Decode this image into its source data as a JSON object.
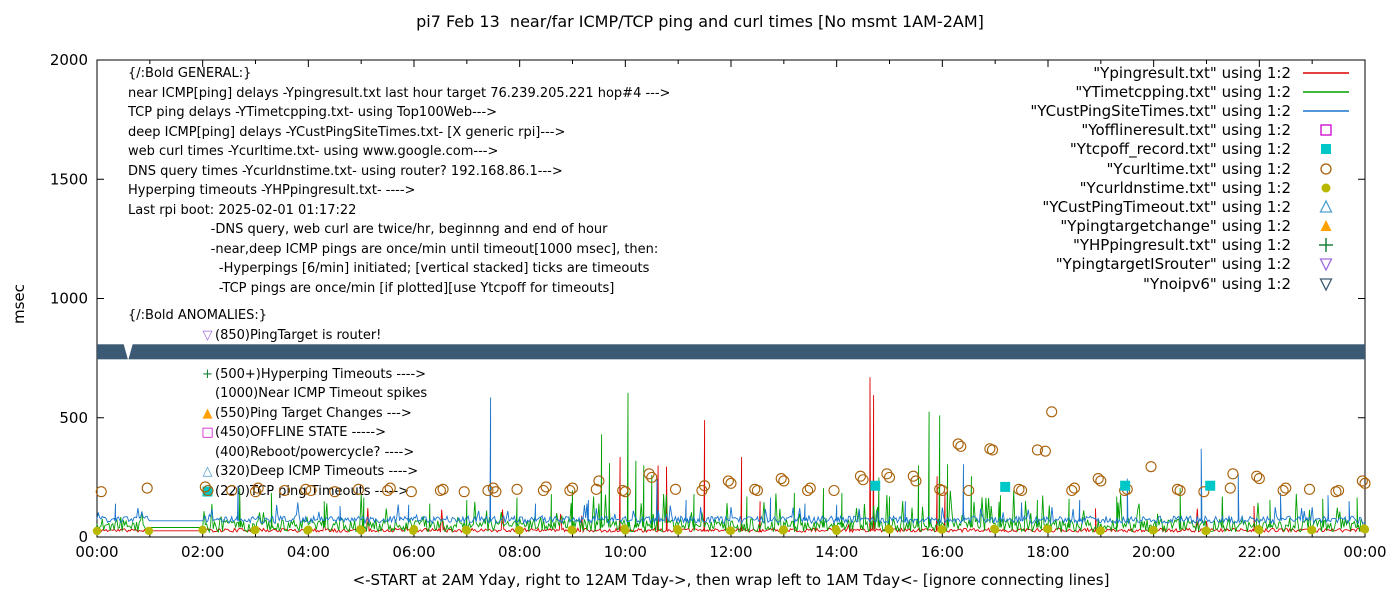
{
  "chart_data": {
    "type": "line",
    "title": "pi7 Feb 13  near/far ICMP/TCP ping and curl times [No msmt 1AM-2AM]",
    "xlabel": "<-START at 2AM Yday, right to 12AM Tday->, then wrap left to 1AM Tday<- [ignore connecting lines]",
    "ylabel": "msec",
    "ylim": [
      0,
      2000
    ],
    "y_ticks": [
      0,
      500,
      1000,
      1500,
      2000
    ],
    "x_range_hours": [
      0,
      24
    ],
    "grid": false,
    "legend_position": "top-right",
    "x_ticks": [
      {
        "hour": 0,
        "label": "00:00"
      },
      {
        "hour": 2,
        "label": "02:00"
      },
      {
        "hour": 4,
        "label": "04:00"
      },
      {
        "hour": 6,
        "label": "06:00"
      },
      {
        "hour": 8,
        "label": "08:00"
      },
      {
        "hour": 10,
        "label": "10:00"
      },
      {
        "hour": 12,
        "label": "12:00"
      },
      {
        "hour": 14,
        "label": "14:00"
      },
      {
        "hour": 16,
        "label": "16:00"
      },
      {
        "hour": 18,
        "label": "18:00"
      },
      {
        "hour": 20,
        "label": "20:00"
      },
      {
        "hour": 22,
        "label": "22:00"
      },
      {
        "hour": 24,
        "label": "00:00"
      }
    ],
    "legend": [
      {
        "label": "\"Ypingresult.txt\" using 1:2",
        "sample": "line",
        "color": "#dc0000"
      },
      {
        "label": "\"YTimetcpping.txt\" using 1:2",
        "sample": "line",
        "color": "#00a000"
      },
      {
        "label": "\"YCustPingSiteTimes.txt\" using 1:2",
        "sample": "line",
        "color": "#1874cd"
      },
      {
        "label": "\"Yofflineresult.txt\" using 1:2",
        "sample": "square-open",
        "color": "#cc00cc"
      },
      {
        "label": "\"Ytcpoff_record.txt\" using 1:2",
        "sample": "square-fill",
        "color": "#00c8c8"
      },
      {
        "label": "\"Ycurltime.txt\" using 1:2",
        "sample": "circle-open",
        "color": "#a86008"
      },
      {
        "label": "\"Ycurldnstime.txt\" using 1:2",
        "sample": "circle-fill",
        "color": "#b8b800"
      },
      {
        "label": "\"YCustPingTimeout.txt\" using 1:2",
        "sample": "tri-up-open",
        "color": "#4f9fd0"
      },
      {
        "label": "\"Ypingtargetchange\" using 1:2",
        "sample": "tri-up-fill",
        "color": "#ffa000"
      },
      {
        "label": "\"YHPpingresult.txt\" using 1:2",
        "sample": "plus",
        "color": "#188038"
      },
      {
        "label": "\"YpingtargetISrouter\" using 1:2",
        "sample": "tri-down-open",
        "color": "#9e6ade"
      },
      {
        "label": "\"Ynoipv6\" using 1:2",
        "sample": "tri-down-open",
        "color": "#3c5a74"
      }
    ],
    "annotations": {
      "general": [
        "{/:Bold GENERAL:}",
        "near ICMP[ping] delays -Ypingresult.txt last hour target 76.239.205.221 hop#4 --->",
        "TCP ping delays -YTimetcpping.txt- using Top100Web--->",
        "deep ICMP[ping] delays -YCustPingSiteTimes.txt- [X generic rpi]--->",
        "web curl times -Ycurltime.txt- using www.google.com--->",
        "DNS query times -Ycurldnstime.txt- using router? 192.168.86.1--->",
        "Hyperping timeouts -YHPpingresult.txt- ---->",
        "Last rpi boot: 2025-02-01 01:17:22",
        "                    -DNS query, web curl are twice/hr, beginnng and end of hour",
        "                    -near,deep ICMP pings are once/min until timeout[1000 msec], then:",
        "                      -Hyperpings [6/min] initiated; [vertical stacked] ticks are timeouts",
        "                      -TCP pings are once/min [if plotted][use Ytcpoff for timeouts]"
      ],
      "anomalies": [
        {
          "header": true,
          "glyph": "",
          "marker": "",
          "color": "#000000",
          "text": "{/:Bold ANOMALIES:}"
        },
        {
          "header": false,
          "glyph": "▽",
          "marker": "tri-down-open",
          "color": "#9e6ade",
          "text": "(850)PingTarget is router!"
        },
        {
          "header": false,
          "glyph": "",
          "marker": "blank",
          "color": "#000000",
          "text": ""
        },
        {
          "header": false,
          "glyph": "+",
          "marker": "plus",
          "color": "#188038",
          "text": "(500+)Hyperping Timeouts ---->"
        },
        {
          "header": false,
          "glyph": "",
          "marker": "blank",
          "color": "#000000",
          "text": "(1000)Near ICMP Timeout spikes"
        },
        {
          "header": false,
          "glyph": "▲",
          "marker": "tri-up-fill",
          "color": "#ffa000",
          "text": "(550)Ping Target Changes --->"
        },
        {
          "header": false,
          "glyph": "□",
          "marker": "square-open",
          "color": "#cc00cc",
          "text": "(450)OFFLINE STATE ----->"
        },
        {
          "header": false,
          "glyph": "",
          "marker": "blank",
          "color": "#000000",
          "text": "(400)Reboot/powercycle? ---->"
        },
        {
          "header": false,
          "glyph": "△",
          "marker": "tri-up-open",
          "color": "#4f9fd0",
          "text": "(320)Deep ICMP Timeouts ---->"
        },
        {
          "header": false,
          "glyph": "■",
          "marker": "square-fill",
          "color": "#00c8c8",
          "text": "(220)TCP ping Timeouts ----->"
        }
      ]
    },
    "series": [
      {
        "name": "Ypingresult",
        "color": "#dc0000",
        "type": "line",
        "seed": 11,
        "base": 26,
        "jitter": 16,
        "burst_prob": 0.015,
        "burst_max": 110,
        "spikes": [
          [
            9.9,
            335
          ],
          [
            10.62,
            300
          ],
          [
            10.78,
            295
          ],
          [
            11.5,
            490
          ],
          [
            12.2,
            335
          ],
          [
            12.55,
            150
          ],
          [
            14.63,
            670
          ],
          [
            14.7,
            595
          ],
          [
            15.9,
            255
          ],
          [
            16.05,
            190
          ],
          [
            18.9,
            120
          ],
          [
            21.9,
            130
          ]
        ]
      },
      {
        "name": "YTimetcpping",
        "color": "#00a000",
        "type": "line",
        "seed": 22,
        "base": 40,
        "jitter": 55,
        "burst_prob": 0.1,
        "burst_max": 130,
        "spikes": [
          [
            2.7,
            205
          ],
          [
            3.3,
            185
          ],
          [
            4.3,
            150
          ],
          [
            5.05,
            165
          ],
          [
            6.3,
            140
          ],
          [
            7.0,
            155
          ],
          [
            7.95,
            165
          ],
          [
            8.6,
            180
          ],
          [
            9.0,
            195
          ],
          [
            9.55,
            430
          ],
          [
            9.7,
            310
          ],
          [
            10.05,
            605
          ],
          [
            10.2,
            320
          ],
          [
            10.35,
            300
          ],
          [
            10.5,
            260
          ],
          [
            11.3,
            180
          ],
          [
            12.3,
            170
          ],
          [
            13.2,
            185
          ],
          [
            13.75,
            205
          ],
          [
            14.1,
            185
          ],
          [
            14.8,
            250
          ],
          [
            15.0,
            170
          ],
          [
            15.55,
            300
          ],
          [
            15.75,
            525
          ],
          [
            15.95,
            510
          ],
          [
            16.1,
            305
          ],
          [
            16.55,
            255
          ],
          [
            17.1,
            175
          ],
          [
            17.8,
            155
          ],
          [
            18.4,
            160
          ],
          [
            19.3,
            170
          ],
          [
            20.5,
            205
          ],
          [
            21.3,
            165
          ],
          [
            22.2,
            155
          ],
          [
            23.2,
            160
          ],
          [
            23.85,
            165
          ]
        ]
      },
      {
        "name": "YCustPingSiteTimes",
        "color": "#1874cd",
        "type": "line",
        "seed": 33,
        "base": 68,
        "jitter": 30,
        "burst_prob": 0.06,
        "burst_max": 60,
        "spikes": [
          [
            0.35,
            140
          ],
          [
            2.67,
            215
          ],
          [
            4.6,
            130
          ],
          [
            5.9,
            135
          ],
          [
            7.45,
            585
          ],
          [
            8.3,
            140
          ],
          [
            9.3,
            155
          ],
          [
            10.6,
            245
          ],
          [
            11.15,
            155
          ],
          [
            12.75,
            165
          ],
          [
            13.4,
            140
          ],
          [
            14.0,
            135
          ],
          [
            15.3,
            150
          ],
          [
            16.4,
            305
          ],
          [
            17.5,
            145
          ],
          [
            18.6,
            155
          ],
          [
            19.5,
            245
          ],
          [
            20.9,
            370
          ],
          [
            21.6,
            265
          ],
          [
            22.4,
            185
          ],
          [
            23.3,
            175
          ],
          [
            23.7,
            150
          ]
        ]
      }
    ],
    "scatter": [
      {
        "name": "Ycurltime",
        "marker": "circle-open",
        "color": "#a86008",
        "points": [
          [
            0.08,
            190
          ],
          [
            0.95,
            205
          ],
          [
            2.05,
            210
          ],
          [
            2.1,
            195
          ],
          [
            2.55,
            195
          ],
          [
            3.0,
            190
          ],
          [
            3.05,
            205
          ],
          [
            3.55,
            195
          ],
          [
            3.95,
            200
          ],
          [
            4.05,
            195
          ],
          [
            4.5,
            190
          ],
          [
            4.95,
            200
          ],
          [
            5.5,
            195
          ],
          [
            5.55,
            205
          ],
          [
            5.95,
            190
          ],
          [
            6.5,
            195
          ],
          [
            6.55,
            200
          ],
          [
            6.95,
            190
          ],
          [
            7.4,
            195
          ],
          [
            7.5,
            205
          ],
          [
            7.55,
            190
          ],
          [
            7.95,
            200
          ],
          [
            8.45,
            195
          ],
          [
            8.5,
            210
          ],
          [
            8.95,
            195
          ],
          [
            9.0,
            205
          ],
          [
            9.45,
            200
          ],
          [
            9.5,
            235
          ],
          [
            9.95,
            195
          ],
          [
            10.0,
            190
          ],
          [
            10.45,
            265
          ],
          [
            10.5,
            250
          ],
          [
            10.95,
            200
          ],
          [
            11.45,
            195
          ],
          [
            11.5,
            215
          ],
          [
            11.95,
            235
          ],
          [
            12.0,
            225
          ],
          [
            12.45,
            200
          ],
          [
            12.5,
            195
          ],
          [
            12.95,
            245
          ],
          [
            13.0,
            235
          ],
          [
            13.45,
            195
          ],
          [
            13.5,
            205
          ],
          [
            13.95,
            195
          ],
          [
            14.45,
            255
          ],
          [
            14.5,
            240
          ],
          [
            14.95,
            265
          ],
          [
            15.0,
            250
          ],
          [
            15.45,
            255
          ],
          [
            15.5,
            235
          ],
          [
            15.95,
            200
          ],
          [
            16.0,
            195
          ],
          [
            16.3,
            390
          ],
          [
            16.35,
            380
          ],
          [
            16.5,
            195
          ],
          [
            16.9,
            370
          ],
          [
            16.95,
            365
          ],
          [
            17.45,
            200
          ],
          [
            17.5,
            195
          ],
          [
            17.8,
            365
          ],
          [
            17.95,
            360
          ],
          [
            18.07,
            525
          ],
          [
            18.45,
            195
          ],
          [
            18.5,
            205
          ],
          [
            18.95,
            245
          ],
          [
            19.0,
            235
          ],
          [
            19.45,
            195
          ],
          [
            19.5,
            200
          ],
          [
            19.95,
            295
          ],
          [
            20.45,
            200
          ],
          [
            20.5,
            195
          ],
          [
            20.95,
            190
          ],
          [
            21.45,
            205
          ],
          [
            21.5,
            265
          ],
          [
            21.95,
            255
          ],
          [
            22.0,
            245
          ],
          [
            22.45,
            195
          ],
          [
            22.5,
            205
          ],
          [
            22.95,
            200
          ],
          [
            23.45,
            190
          ],
          [
            23.5,
            195
          ],
          [
            23.95,
            235
          ],
          [
            24.0,
            225
          ]
        ]
      },
      {
        "name": "Ytcpoff_record",
        "marker": "square-fill",
        "color": "#00c8c8",
        "points": [
          [
            14.73,
            215
          ],
          [
            17.19,
            210
          ],
          [
            19.46,
            215
          ],
          [
            21.07,
            215
          ]
        ]
      }
    ],
    "dns_dots": {
      "name": "Ycurldnstime",
      "color": "#b8b800",
      "value": 30,
      "jitter": 10,
      "skip_from": 1,
      "skip_to": 2,
      "seed": 7
    },
    "band": {
      "name": "Ynoipv6-band",
      "msec_low": 745,
      "msec_high": 808,
      "color": "#3c5a74",
      "notch": {
        "from_hour": 0.5,
        "to_hour": 0.68
      }
    }
  }
}
